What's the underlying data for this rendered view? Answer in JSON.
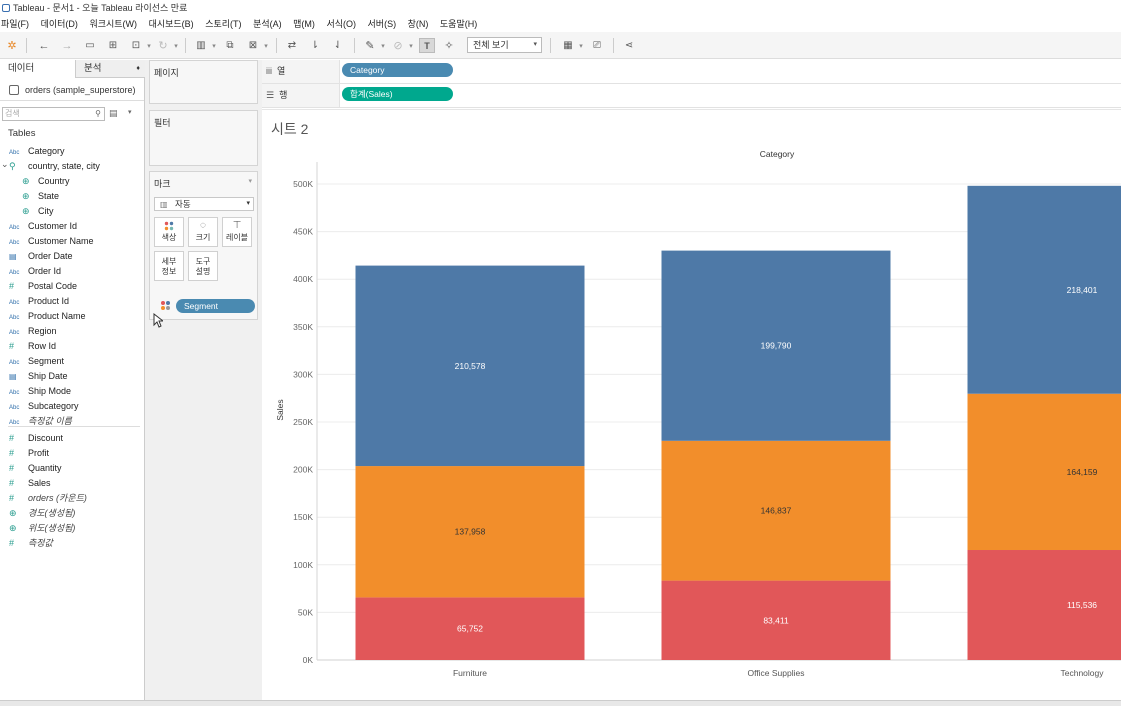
{
  "window": {
    "title": "Tableau - 문서1 - 오늘 Tableau 라이선스 만료"
  },
  "menu": [
    "파일(F)",
    "데이터(D)",
    "워크시트(W)",
    "대시보드(B)",
    "스토리(T)",
    "분석(A)",
    "맵(M)",
    "서식(O)",
    "서버(S)",
    "창(N)",
    "도움말(H)"
  ],
  "toolbar": {
    "fit_select": "전체 보기"
  },
  "left_panel": {
    "tab_data": "데이터",
    "tab_analysis": "분석",
    "datasource": "orders (sample_superstore)",
    "search_placeholder": "검색",
    "tables_label": "Tables",
    "dimensions": [
      {
        "type": "Abc",
        "name": "Category"
      },
      {
        "type": "hier",
        "name": "country, state, city"
      },
      {
        "type": "geo",
        "name": "Country",
        "sub": true
      },
      {
        "type": "geo",
        "name": "State",
        "sub": true
      },
      {
        "type": "geo",
        "name": "City",
        "sub": true
      },
      {
        "type": "Abc",
        "name": "Customer Id"
      },
      {
        "type": "Abc",
        "name": "Customer Name"
      },
      {
        "type": "date",
        "name": "Order Date"
      },
      {
        "type": "Abc",
        "name": "Order Id"
      },
      {
        "type": "num",
        "name": "Postal Code"
      },
      {
        "type": "Abc",
        "name": "Product Id"
      },
      {
        "type": "Abc",
        "name": "Product Name"
      },
      {
        "type": "Abc",
        "name": "Region"
      },
      {
        "type": "num",
        "name": "Row Id"
      },
      {
        "type": "Abc",
        "name": "Segment"
      },
      {
        "type": "date",
        "name": "Ship Date"
      },
      {
        "type": "Abc",
        "name": "Ship Mode"
      },
      {
        "type": "Abc",
        "name": "Subcategory"
      },
      {
        "type": "Abc",
        "name": "측정값 이름",
        "italic": true
      }
    ],
    "measures": [
      {
        "type": "num",
        "name": "Discount"
      },
      {
        "type": "num",
        "name": "Profit"
      },
      {
        "type": "num",
        "name": "Quantity"
      },
      {
        "type": "num",
        "name": "Sales"
      },
      {
        "type": "num",
        "name": "orders (카운트)",
        "italic": true
      },
      {
        "type": "geo",
        "name": "경도(생성됨)",
        "italic": true
      },
      {
        "type": "geo",
        "name": "위도(생성됨)",
        "italic": true
      },
      {
        "type": "num",
        "name": "측정값",
        "italic": true
      }
    ]
  },
  "cards": {
    "pages": "페이지",
    "filters": "필터",
    "marks": "마크",
    "mark_type": "자동",
    "buttons": {
      "color": "색상",
      "size": "크기",
      "label": "레이블",
      "detail_line1": "세부",
      "detail_line2": "정보",
      "tooltip_line1": "도구",
      "tooltip_line2": "설명"
    },
    "segment_pill": "Segment"
  },
  "shelves": {
    "columns_label": "열",
    "rows_label": "행",
    "columns_pill": "Category",
    "rows_pill": "합계(Sales)"
  },
  "sheet": {
    "title": "시트 2"
  },
  "colors": {
    "consumer": "#4e79a7",
    "corporate": "#f28e2b",
    "home_office": "#e15759",
    "column_pill": "#4a8ab1",
    "row_pill": "#00a88e"
  },
  "chart_data": {
    "type": "bar",
    "stacked": true,
    "title": "Category",
    "ylabel": "Sales",
    "xlabel": "",
    "ylim": [
      0,
      500000
    ],
    "yticks": [
      "0K",
      "50K",
      "100K",
      "150K",
      "200K",
      "250K",
      "300K",
      "350K",
      "400K",
      "450K",
      "500K"
    ],
    "categories": [
      "Furniture",
      "Office Supplies",
      "Technology"
    ],
    "series": [
      {
        "values": [
          65752,
          83411,
          115536
        ],
        "labels": [
          "65,752",
          "83,411",
          "115,536"
        ],
        "color": "#e15759"
      },
      {
        "values": [
          137958,
          146837,
          164159
        ],
        "labels": [
          "137,958",
          "146,837",
          "164,159"
        ],
        "color": "#f28e2b"
      },
      {
        "values": [
          210578,
          199790,
          218401
        ],
        "labels": [
          "210,578",
          "199,790",
          "218,401"
        ],
        "color": "#4e79a7"
      }
    ]
  }
}
